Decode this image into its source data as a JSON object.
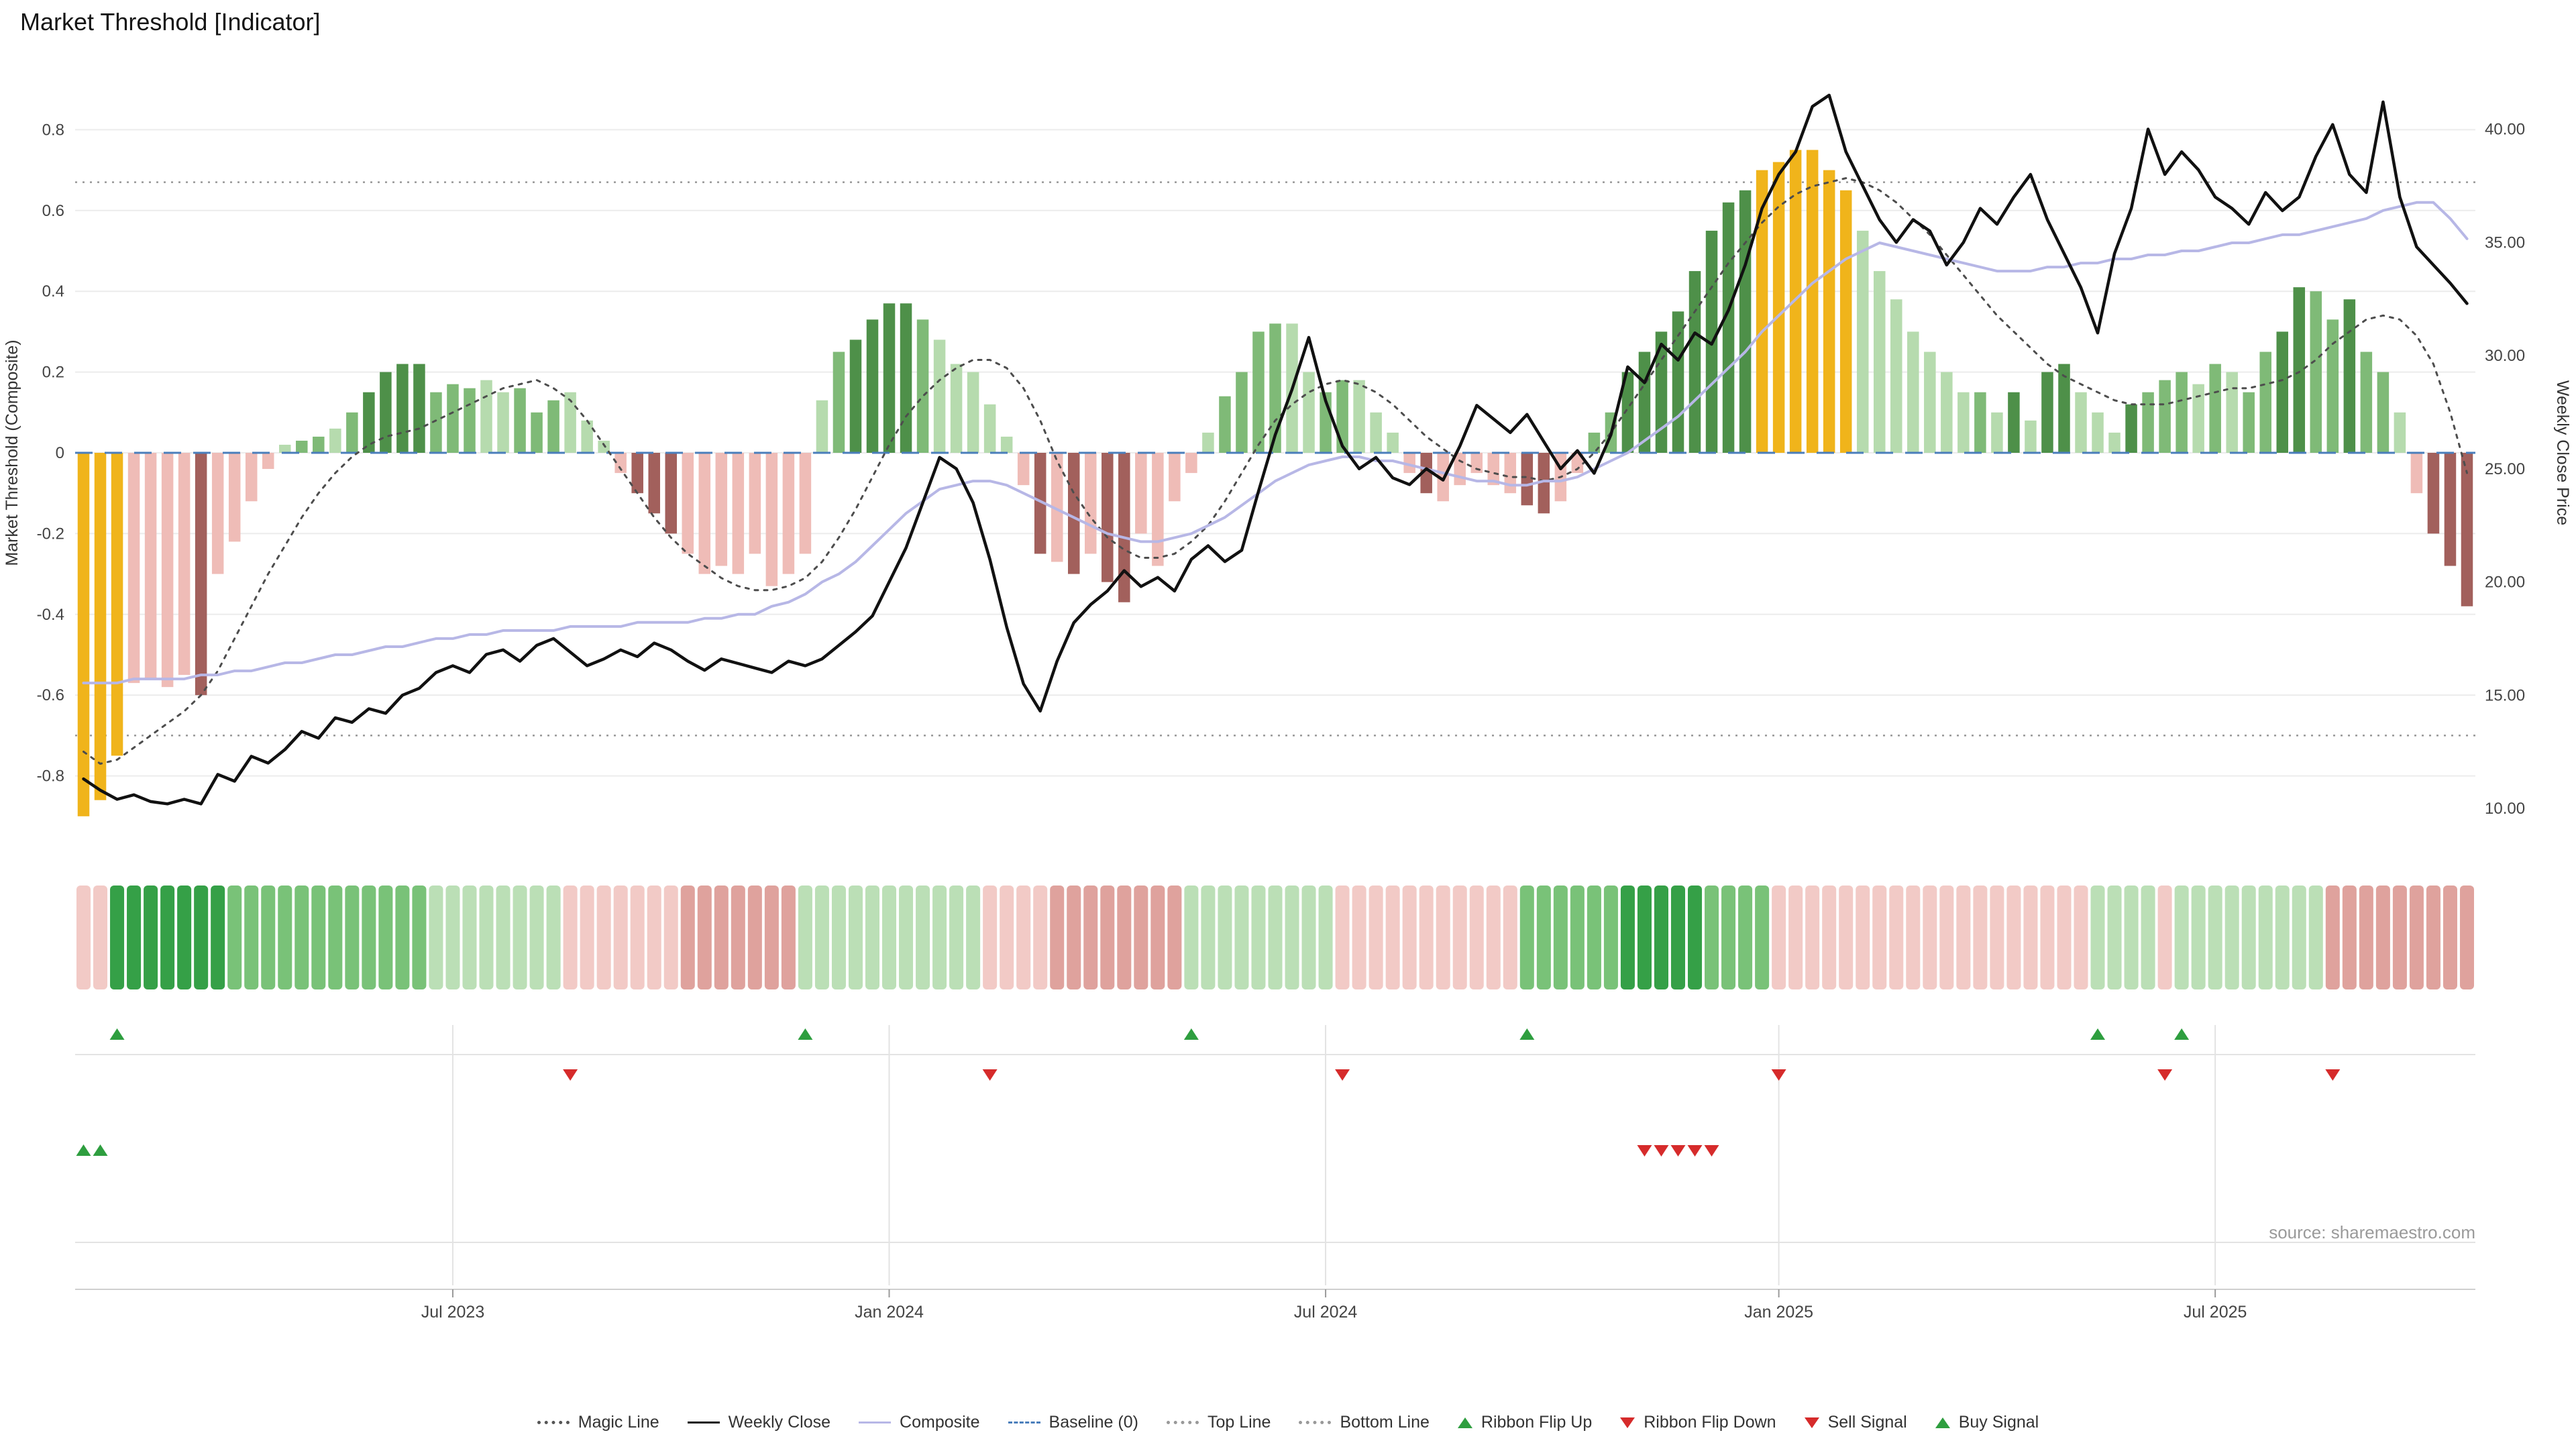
{
  "title": "Market Threshold [Indicator]",
  "source": "source: sharemaestro.com",
  "axes": {
    "left_label": "Market Threshold (Composite)",
    "right_label": "Weekly Close Price",
    "left_ticks": [
      {
        "v": 0.8,
        "t": "0.8"
      },
      {
        "v": 0.6,
        "t": "0.6"
      },
      {
        "v": 0.4,
        "t": "0.4"
      },
      {
        "v": 0.2,
        "t": "0.2"
      },
      {
        "v": 0.0,
        "t": "0"
      },
      {
        "v": -0.2,
        "t": "-0.2"
      },
      {
        "v": -0.4,
        "t": "-0.4"
      },
      {
        "v": -0.6,
        "t": "-0.6"
      },
      {
        "v": -0.8,
        "t": "-0.8"
      }
    ],
    "right_ticks": [
      {
        "p": 40,
        "t": "40.00"
      },
      {
        "p": 35,
        "t": "35.00"
      },
      {
        "p": 30,
        "t": "30.00"
      },
      {
        "p": 25,
        "t": "25.00"
      },
      {
        "p": 20,
        "t": "20.00"
      },
      {
        "p": 15,
        "t": "15.00"
      },
      {
        "p": 10,
        "t": "10.00"
      }
    ],
    "x_ticks": [
      {
        "week": 22,
        "label": "Jul 2023"
      },
      {
        "week": 48,
        "label": "Jan 2024"
      },
      {
        "week": 74,
        "label": "Jul 2024"
      },
      {
        "week": 101,
        "label": "Jan 2025"
      },
      {
        "week": 127,
        "label": "Jul 2025"
      }
    ]
  },
  "colors": {
    "bar": {
      "G": "#f0b41b",
      "g3": "#4e9049",
      "g2": "#7fba77",
      "g1": "#b6dbae",
      "p1": "#efbcb7",
      "p2": "#a2605c"
    },
    "ribbon": {
      "g3": "#35a047",
      "g2": "#79c278",
      "g1": "#bbdfb6",
      "p1": "#f2cac6",
      "p2": "#dfa29d"
    },
    "weekly_close": "#111111",
    "composite": "#b7b7e6",
    "magic": "#4d4d4d",
    "baseline": "#4a7ebb",
    "top_bottom": "#979797",
    "signal_up": "#2e9e3f",
    "signal_down": "#d62b2b",
    "grid": "#ececec",
    "panel_grid": "#e3e3e3"
  },
  "legend": [
    {
      "label": "Magic Line",
      "marker": "dotted-line",
      "color": "#555555"
    },
    {
      "label": "Weekly Close",
      "marker": "solid-line",
      "color": "#111111"
    },
    {
      "label": "Composite",
      "marker": "solid-line",
      "color": "#b7b7e6"
    },
    {
      "label": "Baseline (0)",
      "marker": "dashed-line",
      "color": "#4a7ebb"
    },
    {
      "label": "Top Line",
      "marker": "dotted-line",
      "color": "#999999"
    },
    {
      "label": "Bottom Line",
      "marker": "dotted-line",
      "color": "#999999"
    },
    {
      "label": "Ribbon Flip Up",
      "marker": "triangle-up",
      "color": "#2e9e3f"
    },
    {
      "label": "Ribbon Flip Down",
      "marker": "triangle-down",
      "color": "#d62b2b"
    },
    {
      "label": "Sell Signal",
      "marker": "triangle-down",
      "color": "#d62b2b"
    },
    {
      "label": "Buy Signal",
      "marker": "triangle-up",
      "color": "#2e9e3f"
    }
  ],
  "chart_data": {
    "type": "bar+line",
    "x_unit": "week",
    "num_weeks": 143,
    "title": "Market Threshold [Indicator]",
    "left_ylabel": "Market Threshold (Composite)",
    "right_ylabel": "Weekly Close Price",
    "left_ylim": [
      -1,
      1
    ],
    "right_ylim": [
      8,
      43.5
    ],
    "grid": true,
    "legend_position": "bottom-center",
    "top_line": 0.67,
    "bottom_line": -0.7,
    "baseline": 0,
    "threshold_bars": [
      -0.9,
      -0.86,
      -0.75,
      -0.57,
      -0.56,
      -0.58,
      -0.55,
      -0.6,
      -0.3,
      -0.22,
      -0.12,
      -0.04,
      0.02,
      0.03,
      0.04,
      0.06,
      0.1,
      0.15,
      0.2,
      0.22,
      0.22,
      0.15,
      0.17,
      0.16,
      0.18,
      0.15,
      0.16,
      0.1,
      0.13,
      0.15,
      0.08,
      0.03,
      -0.05,
      -0.1,
      -0.15,
      -0.2,
      -0.25,
      -0.3,
      -0.28,
      -0.3,
      -0.25,
      -0.33,
      -0.3,
      -0.25,
      0.13,
      0.25,
      0.28,
      0.33,
      0.37,
      0.37,
      0.33,
      0.28,
      0.22,
      0.2,
      0.12,
      0.04,
      -0.08,
      -0.25,
      -0.27,
      -0.3,
      -0.25,
      -0.32,
      -0.37,
      -0.2,
      -0.28,
      -0.12,
      -0.05,
      0.05,
      0.14,
      0.2,
      0.3,
      0.32,
      0.32,
      0.2,
      0.15,
      0.18,
      0.18,
      0.1,
      0.05,
      -0.05,
      -0.1,
      -0.12,
      -0.08,
      -0.05,
      -0.08,
      -0.1,
      -0.13,
      -0.15,
      -0.12,
      -0.05,
      0.05,
      0.1,
      0.2,
      0.25,
      0.3,
      0.35,
      0.45,
      0.55,
      0.62,
      0.65,
      0.7,
      0.72,
      0.75,
      0.75,
      0.7,
      0.65,
      0.55,
      0.45,
      0.38,
      0.3,
      0.25,
      0.2,
      0.15,
      0.15,
      0.1,
      0.15,
      0.08,
      0.2,
      0.22,
      0.15,
      0.1,
      0.05,
      0.12,
      0.15,
      0.18,
      0.2,
      0.17,
      0.22,
      0.2,
      0.15,
      0.25,
      0.3,
      0.41,
      0.4,
      0.33,
      0.38,
      0.25,
      0.2,
      0.1,
      -0.1,
      -0.2,
      -0.28,
      -0.38
    ],
    "bar_colors": [
      "G",
      "G",
      "G",
      "p1",
      "p1",
      "p1",
      "p1",
      "p2",
      "p1",
      "p1",
      "p1",
      "p1",
      "g1",
      "g2",
      "g2",
      "g1",
      "g2",
      "g3",
      "g3",
      "g3",
      "g3",
      "g2",
      "g2",
      "g2",
      "g1",
      "g1",
      "g2",
      "g2",
      "g2",
      "g1",
      "g1",
      "g1",
      "p1",
      "p2",
      "p2",
      "p2",
      "p1",
      "p1",
      "p1",
      "p1",
      "p1",
      "p1",
      "p1",
      "p1",
      "g1",
      "g2",
      "g3",
      "g3",
      "g3",
      "g3",
      "g2",
      "g1",
      "g1",
      "g1",
      "g1",
      "g1",
      "p1",
      "p2",
      "p1",
      "p2",
      "p1",
      "p2",
      "p2",
      "p1",
      "p1",
      "p1",
      "p1",
      "g1",
      "g2",
      "g2",
      "g2",
      "g2",
      "g1",
      "g1",
      "g2",
      "g2",
      "g1",
      "g1",
      "g1",
      "p1",
      "p2",
      "p1",
      "p1",
      "p1",
      "p1",
      "p1",
      "p2",
      "p2",
      "p1",
      "p1",
      "g2",
      "g2",
      "g3",
      "g3",
      "g3",
      "g3",
      "g3",
      "g3",
      "g3",
      "g3",
      "G",
      "G",
      "G",
      "G",
      "G",
      "G",
      "g1",
      "g1",
      "g1",
      "g1",
      "g1",
      "g1",
      "g1",
      "g2",
      "g1",
      "g3",
      "g1",
      "g3",
      "g3",
      "g1",
      "g1",
      "g1",
      "g3",
      "g2",
      "g2",
      "g2",
      "g1",
      "g2",
      "g1",
      "g2",
      "g2",
      "g3",
      "g3",
      "g2",
      "g2",
      "g3",
      "g2",
      "g2",
      "g1",
      "p1",
      "p2",
      "p2",
      "p2"
    ],
    "weekly_close": [
      11.3,
      10.8,
      10.4,
      10.6,
      10.3,
      10.2,
      10.4,
      10.2,
      11.5,
      11.2,
      12.3,
      12.0,
      12.6,
      13.4,
      13.1,
      14.0,
      13.8,
      14.4,
      14.2,
      15.0,
      15.3,
      16.0,
      16.3,
      16.0,
      16.8,
      17.0,
      16.5,
      17.2,
      17.5,
      16.9,
      16.3,
      16.6,
      17.0,
      16.7,
      17.3,
      17.0,
      16.5,
      16.1,
      16.6,
      16.4,
      16.2,
      16.0,
      16.5,
      16.3,
      16.6,
      17.2,
      17.8,
      18.5,
      20.0,
      21.5,
      23.5,
      25.5,
      25.0,
      23.5,
      21.0,
      18.0,
      15.5,
      14.3,
      16.5,
      18.2,
      19.0,
      19.6,
      20.5,
      19.8,
      20.2,
      19.6,
      21.0,
      21.6,
      20.9,
      21.4,
      24.0,
      26.5,
      28.5,
      30.8,
      28.0,
      26.0,
      25.0,
      25.5,
      24.6,
      24.3,
      25.0,
      24.5,
      26.0,
      27.8,
      27.2,
      26.6,
      27.4,
      26.2,
      25.0,
      25.8,
      24.8,
      26.5,
      29.5,
      28.8,
      30.5,
      29.8,
      31.0,
      30.5,
      32.0,
      34.0,
      36.5,
      38.0,
      39.0,
      41.0,
      41.5,
      39.0,
      37.5,
      36.0,
      35.0,
      36.0,
      35.5,
      34.0,
      35.0,
      36.5,
      35.8,
      37.0,
      38.0,
      36.0,
      34.5,
      33.0,
      31.0,
      34.5,
      36.5,
      40.0,
      38.0,
      39.0,
      38.2,
      37.0,
      36.5,
      35.8,
      37.2,
      36.4,
      37.0,
      38.8,
      40.2,
      38.0,
      37.2,
      41.2,
      37.0,
      34.8,
      34.0,
      33.2,
      32.3
    ],
    "composite": [
      -0.57,
      -0.57,
      -0.57,
      -0.56,
      -0.56,
      -0.56,
      -0.56,
      -0.55,
      -0.55,
      -0.54,
      -0.54,
      -0.53,
      -0.52,
      -0.52,
      -0.51,
      -0.5,
      -0.5,
      -0.49,
      -0.48,
      -0.48,
      -0.47,
      -0.46,
      -0.46,
      -0.45,
      -0.45,
      -0.44,
      -0.44,
      -0.44,
      -0.44,
      -0.43,
      -0.43,
      -0.43,
      -0.43,
      -0.42,
      -0.42,
      -0.42,
      -0.42,
      -0.41,
      -0.41,
      -0.4,
      -0.4,
      -0.38,
      -0.37,
      -0.35,
      -0.32,
      -0.3,
      -0.27,
      -0.23,
      -0.19,
      -0.15,
      -0.12,
      -0.09,
      -0.08,
      -0.07,
      -0.07,
      -0.08,
      -0.1,
      -0.12,
      -0.14,
      -0.16,
      -0.18,
      -0.2,
      -0.21,
      -0.22,
      -0.22,
      -0.21,
      -0.2,
      -0.18,
      -0.16,
      -0.13,
      -0.1,
      -0.07,
      -0.05,
      -0.03,
      -0.02,
      -0.01,
      -0.01,
      -0.02,
      -0.02,
      -0.03,
      -0.04,
      -0.05,
      -0.06,
      -0.07,
      -0.07,
      -0.08,
      -0.08,
      -0.07,
      -0.07,
      -0.06,
      -0.04,
      -0.02,
      0.0,
      0.03,
      0.06,
      0.09,
      0.13,
      0.17,
      0.21,
      0.25,
      0.3,
      0.34,
      0.38,
      0.42,
      0.45,
      0.48,
      0.5,
      0.52,
      0.51,
      0.5,
      0.49,
      0.48,
      0.47,
      0.46,
      0.45,
      0.45,
      0.45,
      0.46,
      0.46,
      0.47,
      0.47,
      0.48,
      0.48,
      0.49,
      0.49,
      0.5,
      0.5,
      0.51,
      0.52,
      0.52,
      0.53,
      0.54,
      0.54,
      0.55,
      0.56,
      0.57,
      0.58,
      0.6,
      0.61,
      0.62,
      0.62,
      0.58,
      0.53
    ],
    "magic_line": [
      -0.74,
      -0.77,
      -0.76,
      -0.73,
      -0.7,
      -0.67,
      -0.64,
      -0.6,
      -0.54,
      -0.46,
      -0.38,
      -0.3,
      -0.23,
      -0.16,
      -0.1,
      -0.05,
      -0.01,
      0.02,
      0.04,
      0.05,
      0.06,
      0.08,
      0.1,
      0.12,
      0.14,
      0.16,
      0.17,
      0.18,
      0.16,
      0.13,
      0.08,
      0.02,
      -0.04,
      -0.1,
      -0.16,
      -0.21,
      -0.25,
      -0.28,
      -0.31,
      -0.33,
      -0.34,
      -0.34,
      -0.33,
      -0.31,
      -0.27,
      -0.21,
      -0.14,
      -0.06,
      0.02,
      0.09,
      0.14,
      0.18,
      0.21,
      0.23,
      0.23,
      0.21,
      0.16,
      0.08,
      -0.02,
      -0.1,
      -0.16,
      -0.21,
      -0.24,
      -0.26,
      -0.26,
      -0.25,
      -0.22,
      -0.18,
      -0.12,
      -0.05,
      0.02,
      0.08,
      0.12,
      0.15,
      0.17,
      0.18,
      0.17,
      0.15,
      0.12,
      0.08,
      0.04,
      0.01,
      -0.02,
      -0.04,
      -0.05,
      -0.06,
      -0.06,
      -0.07,
      -0.06,
      -0.04,
      0.0,
      0.05,
      0.11,
      0.17,
      0.23,
      0.29,
      0.35,
      0.41,
      0.47,
      0.52,
      0.57,
      0.61,
      0.64,
      0.66,
      0.67,
      0.68,
      0.67,
      0.65,
      0.62,
      0.58,
      0.54,
      0.49,
      0.44,
      0.39,
      0.34,
      0.3,
      0.26,
      0.22,
      0.19,
      0.17,
      0.15,
      0.13,
      0.12,
      0.12,
      0.12,
      0.13,
      0.14,
      0.15,
      0.16,
      0.16,
      0.17,
      0.18,
      0.2,
      0.23,
      0.27,
      0.3,
      0.33,
      0.34,
      0.33,
      0.29,
      0.22,
      0.1,
      -0.05
    ],
    "ribbon_runs": [
      [
        "p1",
        2
      ],
      [
        "g3",
        7
      ],
      [
        "g2",
        12
      ],
      [
        "g1",
        8
      ],
      [
        "p1",
        7
      ],
      [
        "p2",
        7
      ],
      [
        "g1",
        11
      ],
      [
        "p1",
        4
      ],
      [
        "p2",
        8
      ],
      [
        "g1",
        9
      ],
      [
        "p1",
        11
      ],
      [
        "g2",
        6
      ],
      [
        "g3",
        5
      ],
      [
        "g2",
        4
      ],
      [
        "p1",
        19
      ],
      [
        "g1",
        4
      ],
      [
        "p1",
        1
      ],
      [
        "g1",
        9
      ],
      [
        "p2",
        9
      ]
    ],
    "signals": {
      "ribbon_flip_up_weeks": [
        2,
        43,
        66,
        86,
        120,
        125
      ],
      "ribbon_flip_down_weeks": [
        29,
        54,
        75,
        101,
        124,
        134
      ],
      "buy_signal_weeks": [
        0,
        1
      ],
      "sell_signal_weeks": [
        93,
        94,
        95,
        96,
        97
      ]
    }
  }
}
